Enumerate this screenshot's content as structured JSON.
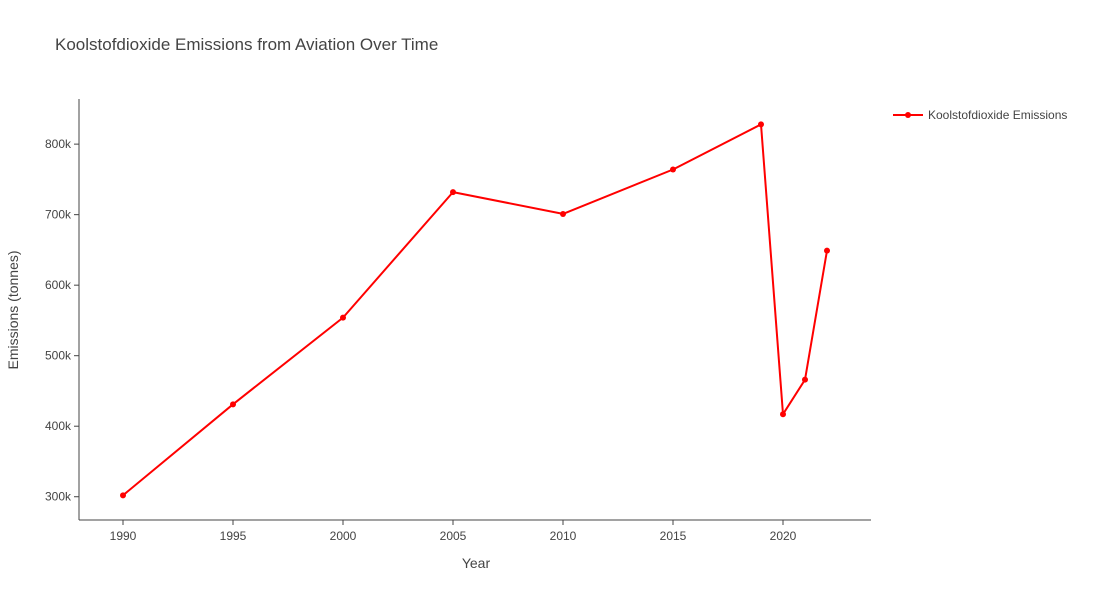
{
  "chart_data": {
    "type": "line",
    "title": "Koolstofdioxide Emissions from Aviation Over Time",
    "xlabel": "Year",
    "ylabel": "Emissions (tonnes)",
    "xlim": [
      1988,
      2024
    ],
    "ylim": [
      267000,
      864000
    ],
    "x_ticks": [
      1990,
      1995,
      2000,
      2005,
      2010,
      2015,
      2020
    ],
    "y_ticks": [
      300000,
      400000,
      500000,
      600000,
      700000,
      800000
    ],
    "y_tick_labels": [
      "300k",
      "400k",
      "500k",
      "600k",
      "700k",
      "800k"
    ],
    "grid": false,
    "legend_position": "top-right",
    "series": [
      {
        "name": "Koolstofdioxide Emissions",
        "color": "#ff0000",
        "x": [
          1990,
          1995,
          2000,
          2005,
          2010,
          2015,
          2019,
          2020,
          2021,
          2022
        ],
        "y": [
          302000,
          431000,
          554000,
          732000,
          701000,
          764000,
          828000,
          417000,
          466000,
          649000
        ]
      }
    ]
  }
}
